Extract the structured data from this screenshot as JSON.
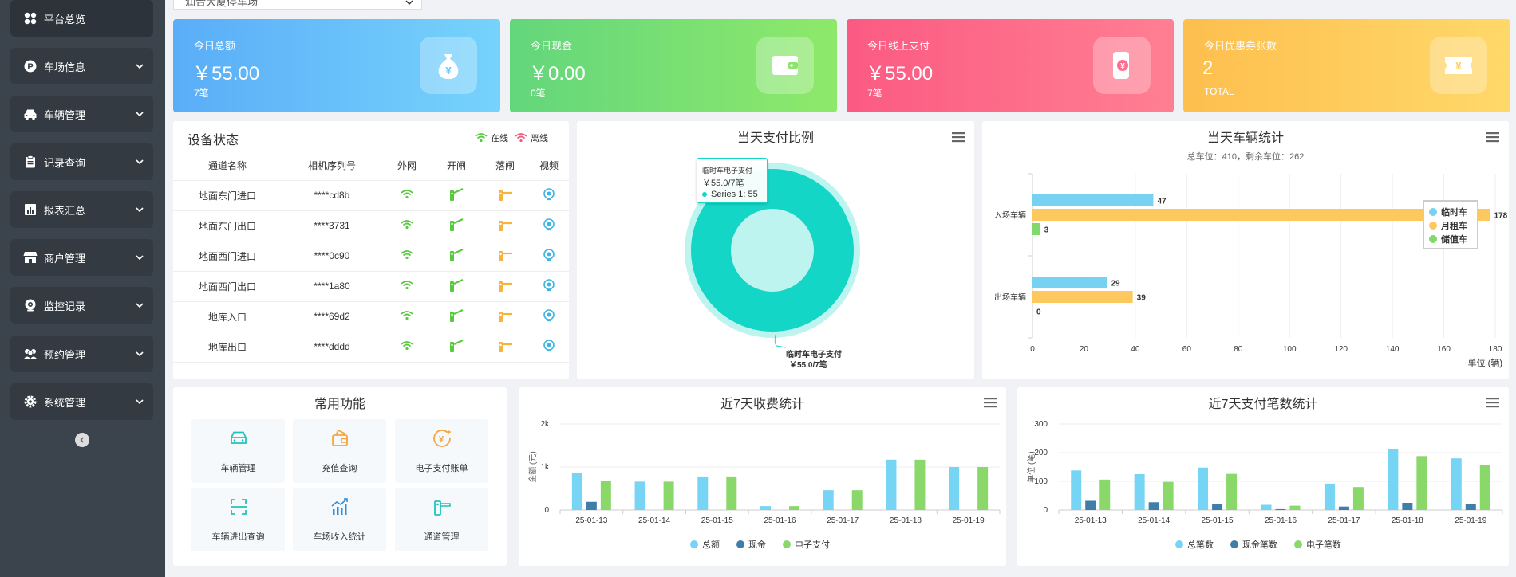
{
  "park_select": {
    "value": "润合大厦停车场"
  },
  "sidebar": {
    "items": [
      {
        "label": "平台总览",
        "icon": "grid-icon",
        "active": true
      },
      {
        "label": "车场信息",
        "icon": "parking-icon"
      },
      {
        "label": "车辆管理",
        "icon": "car-icon"
      },
      {
        "label": "记录查询",
        "icon": "clipboard-icon"
      },
      {
        "label": "报表汇总",
        "icon": "bar-chart-icon"
      },
      {
        "label": "商户管理",
        "icon": "shop-icon"
      },
      {
        "label": "监控记录",
        "icon": "camera-icon"
      },
      {
        "label": "预约管理",
        "icon": "users-icon"
      },
      {
        "label": "系统管理",
        "icon": "gear-icon"
      }
    ]
  },
  "stats": [
    {
      "title": "今日总额",
      "value": "￥55.00",
      "sub": "7笔",
      "color_from": "#5aadf8",
      "color_to": "#76d3fb",
      "icon": "money-bag-icon"
    },
    {
      "title": "今日现金",
      "value": "￥0.00",
      "sub": "0笔",
      "color_from": "#63d67c",
      "color_to": "#8ee96a",
      "icon": "wallet-icon"
    },
    {
      "title": "今日线上支付",
      "value": "￥55.00",
      "sub": "7笔",
      "color_from": "#fb5a82",
      "color_to": "#ff7f92",
      "icon": "phone-pay-icon"
    },
    {
      "title": "今日优惠券张数",
      "value": "2",
      "sub": "TOTAL",
      "color_from": "#fdbf4e",
      "color_to": "#ffd86a",
      "icon": "coupon-icon"
    }
  ],
  "device_status": {
    "title": "设备状态",
    "legend_online": "在线",
    "legend_offline": "离线",
    "columns": [
      "通道名称",
      "相机序列号",
      "外网",
      "开闸",
      "落闸",
      "视频"
    ],
    "rows": [
      {
        "name": "地面东门进口",
        "serial": "****cd8b"
      },
      {
        "name": "地面东门出口",
        "serial": "****3731"
      },
      {
        "name": "地面西门进口",
        "serial": "****0c90"
      },
      {
        "name": "地面西门出口",
        "serial": "****1a80"
      },
      {
        "name": "地库入口",
        "serial": "****69d2"
      },
      {
        "name": "地库出口",
        "serial": "****dddd"
      }
    ]
  },
  "pay_ratio": {
    "title": "当天支付比例",
    "tooltip_title": "临时车电子支付",
    "tooltip_value": "￥55.0/7笔",
    "tooltip_series": "Series 1: 55",
    "label_name": "临时车电子支付",
    "label_value": "￥55.0/7笔",
    "color": "#14d6c6"
  },
  "vehicle_stats": {
    "title": "当天车辆统计",
    "subtitle": "总车位：410，剩余车位：262",
    "unit": "单位 (辆)"
  },
  "common_functions": {
    "title": "常用功能",
    "items": [
      {
        "label": "车辆管理",
        "icon": "car-outline-icon",
        "color": "#23c3b8"
      },
      {
        "label": "充值查询",
        "icon": "recharge-icon",
        "color": "#f7a63b"
      },
      {
        "label": "电子支付账单",
        "icon": "yuan-coin-icon",
        "color": "#f7a63b"
      },
      {
        "label": "车辆进出查询",
        "icon": "scan-icon",
        "color": "#23c3b8"
      },
      {
        "label": "车场收入统计",
        "icon": "trend-chart-icon",
        "color": "#2f8fd8"
      },
      {
        "label": "通道管理",
        "icon": "gate-icon",
        "color": "#23c3b8"
      }
    ]
  },
  "fee_stats": {
    "title": "近7天收费统计"
  },
  "count_stats": {
    "title": "近7天支付笔数统计"
  },
  "chart_data": [
    {
      "type": "pie",
      "title": "当天支付比例",
      "slices": [
        {
          "name": "临时车电子支付",
          "value": 55
        }
      ]
    },
    {
      "type": "bar",
      "orientation": "horizontal",
      "title": "当天车辆统计",
      "subtitle": "总车位：410，剩余车位：262",
      "categories": [
        "入场车辆",
        "出场车辆"
      ],
      "series": [
        {
          "name": "临时车",
          "values": [
            47,
            29
          ],
          "color": "#76d1f2"
        },
        {
          "name": "月租车",
          "values": [
            178,
            39
          ],
          "color": "#fdc95e"
        },
        {
          "name": "储值车",
          "values": [
            3,
            0
          ],
          "color": "#82d86a"
        }
      ],
      "xlim": [
        0,
        180
      ],
      "xticks": [
        0,
        20,
        40,
        60,
        80,
        100,
        120,
        140,
        160,
        180
      ],
      "xlabel": "单位 (辆)",
      "legend": "top-right"
    },
    {
      "type": "bar",
      "title": "近7天收费统计",
      "ylabel": "金额 (元)",
      "categories": [
        "25-01-13",
        "25-01-14",
        "25-01-15",
        "25-01-16",
        "25-01-17",
        "25-01-18",
        "25-01-19"
      ],
      "series": [
        {
          "name": "总额",
          "values": [
            870,
            660,
            780,
            90,
            460,
            1170,
            1000
          ],
          "color": "#76d4f4"
        },
        {
          "name": "现金",
          "values": [
            190,
            0,
            0,
            0,
            0,
            0,
            0
          ],
          "color": "#3d7fa8"
        },
        {
          "name": "电子支付",
          "values": [
            680,
            660,
            780,
            90,
            460,
            1170,
            1000
          ],
          "color": "#8bd86a"
        }
      ],
      "ylim": [
        0,
        2000
      ],
      "yticks": [
        {
          "v": 0,
          "label": "0"
        },
        {
          "v": 1000,
          "label": "1k"
        },
        {
          "v": 2000,
          "label": "2k"
        }
      ],
      "legend": "bottom"
    },
    {
      "type": "bar",
      "title": "近7天支付笔数统计",
      "ylabel": "单位 (笔)",
      "categories": [
        "25-01-13",
        "25-01-14",
        "25-01-15",
        "25-01-16",
        "25-01-17",
        "25-01-18",
        "25-01-19"
      ],
      "series": [
        {
          "name": "总笔数",
          "values": [
            138,
            125,
            148,
            18,
            92,
            213,
            180
          ],
          "color": "#76d4f4"
        },
        {
          "name": "现金笔数",
          "values": [
            32,
            27,
            22,
            3,
            12,
            25,
            22
          ],
          "color": "#3d7fa8"
        },
        {
          "name": "电子笔数",
          "values": [
            106,
            98,
            126,
            15,
            80,
            188,
            158
          ],
          "color": "#8bd86a"
        }
      ],
      "ylim": [
        0,
        300
      ],
      "yticks": [
        {
          "v": 0,
          "label": "0"
        },
        {
          "v": 100,
          "label": "100"
        },
        {
          "v": 200,
          "label": "200"
        },
        {
          "v": 300,
          "label": "300"
        }
      ],
      "legend": "bottom"
    }
  ]
}
